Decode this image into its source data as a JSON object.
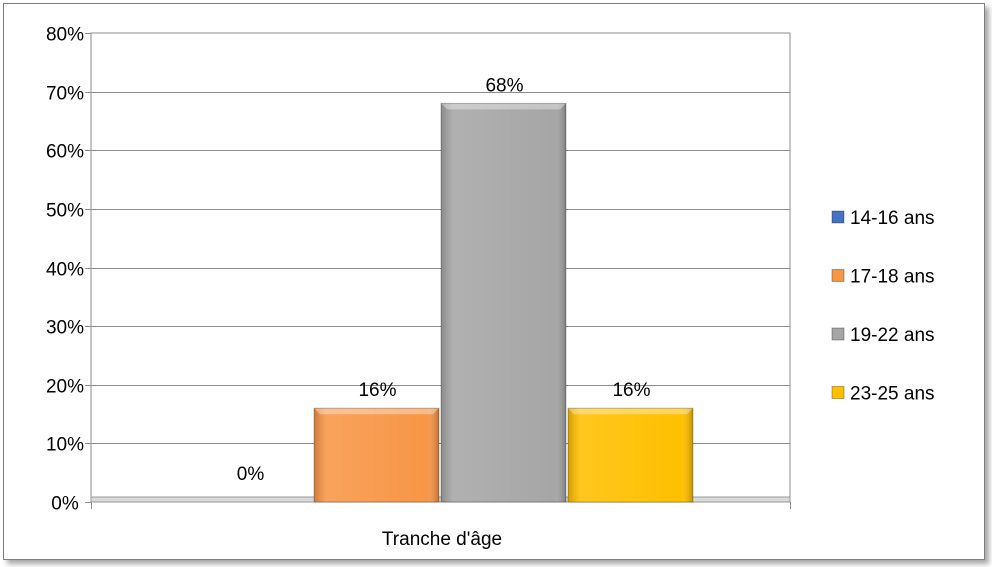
{
  "chart_data": {
    "type": "bar",
    "categories": [
      "Tranche d'âge"
    ],
    "xlabel": "Tranche d'âge",
    "ylabel": "",
    "ylim": [
      0,
      80
    ],
    "y_ticks": [
      0,
      10,
      20,
      30,
      40,
      50,
      60,
      70,
      80
    ],
    "y_tick_format": "percent",
    "grid": true,
    "legend_position": "right",
    "series": [
      {
        "name": "14-16 ans",
        "values": [
          0
        ],
        "label": "0%",
        "color": "#4472c4"
      },
      {
        "name": "17-18 ans",
        "values": [
          16
        ],
        "label": "16%",
        "color": "#f79646"
      },
      {
        "name": "19-22 ans",
        "values": [
          68
        ],
        "label": "68%",
        "color": "#a6a6a6"
      },
      {
        "name": "23-25 ans",
        "values": [
          16
        ],
        "label": "16%",
        "color": "#ffc000"
      }
    ]
  }
}
